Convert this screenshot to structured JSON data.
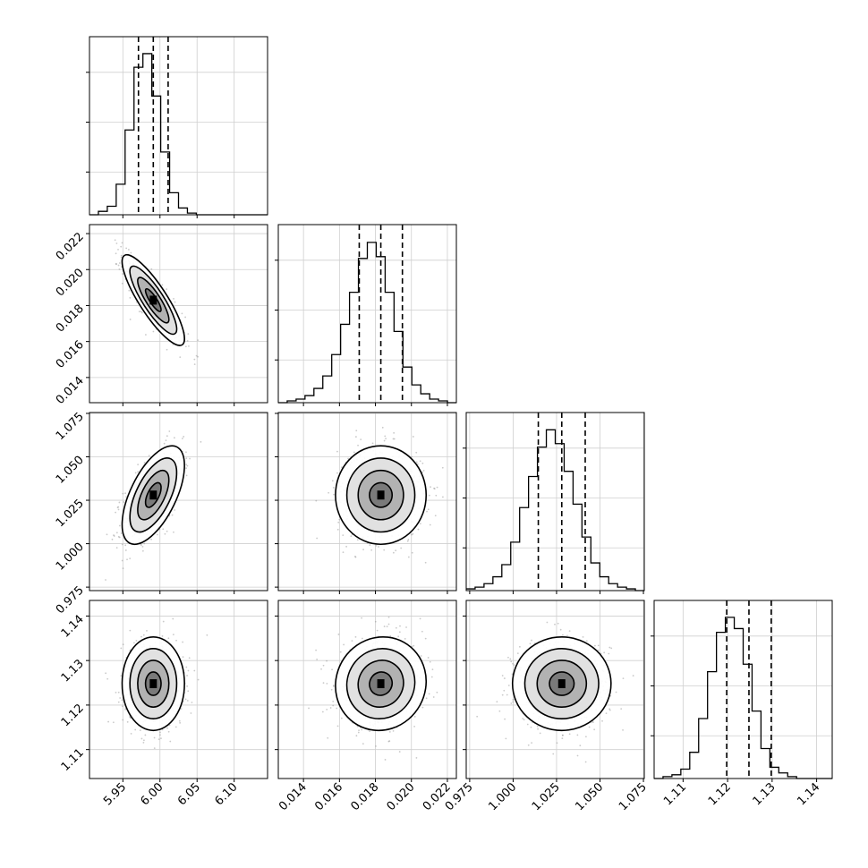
{
  "chart_data": {
    "type": "scatter",
    "title": "",
    "parameters": [
      {
        "key": "p0",
        "range": [
          5.905,
          6.145
        ],
        "quantiles": [
          5.971,
          5.991,
          6.011
        ],
        "ticks": [
          {
            "value": 5.95,
            "label": "5.95"
          },
          {
            "value": 6.0,
            "label": "6.00"
          },
          {
            "value": 6.05,
            "label": "6.05"
          },
          {
            "value": 6.1,
            "label": "6.10"
          }
        ]
      },
      {
        "key": "p1",
        "range": [
          0.0126,
          0.0225
        ],
        "quantiles": [
          0.0171,
          0.0183,
          0.0195
        ],
        "ticks": [
          {
            "value": 0.014,
            "label": "0.014"
          },
          {
            "value": 0.016,
            "label": "0.016"
          },
          {
            "value": 0.018,
            "label": "0.018"
          },
          {
            "value": 0.02,
            "label": "0.020"
          },
          {
            "value": 0.022,
            "label": "0.022"
          }
        ]
      },
      {
        "key": "p2",
        "range": [
          0.973,
          1.0755
        ],
        "quantiles": [
          1.0145,
          1.028,
          1.0415
        ],
        "ticks": [
          {
            "value": 0.975,
            "label": "0.975"
          },
          {
            "value": 1.0,
            "label": "1.000"
          },
          {
            "value": 1.025,
            "label": "1.025"
          },
          {
            "value": 1.05,
            "label": "1.050"
          },
          {
            "value": 1.075,
            "label": "1.075"
          }
        ]
      },
      {
        "key": "p3",
        "range": [
          1.1035,
          1.1435
        ],
        "quantiles": [
          1.1198,
          1.1248,
          1.1298
        ],
        "ticks": [
          {
            "value": 1.11,
            "label": "1.11"
          },
          {
            "value": 1.12,
            "label": "1.12"
          },
          {
            "value": 1.13,
            "label": "1.13"
          },
          {
            "value": 1.14,
            "label": "1.14"
          }
        ]
      }
    ],
    "histograms": [
      {
        "param": "p0",
        "bin_start": 5.905,
        "bin_width": 0.012,
        "counts": [
          0,
          2,
          5,
          18,
          50,
          87,
          95,
          70,
          37,
          13,
          4,
          1,
          0,
          0,
          0,
          0,
          0,
          0,
          0,
          0
        ],
        "ylim": [
          0,
          105
        ]
      },
      {
        "param": "p1",
        "bin_start": 0.0126,
        "bin_width": 0.000495,
        "counts": [
          0,
          1,
          2,
          4,
          8,
          15,
          27,
          44,
          62,
          81,
          90,
          82,
          62,
          40,
          20,
          10,
          5,
          2,
          1,
          0
        ],
        "ylim": [
          0,
          100
        ]
      },
      {
        "param": "p2",
        "bin_start": 0.973,
        "bin_width": 0.005125,
        "counts": [
          1,
          2,
          4,
          8,
          15,
          28,
          48,
          66,
          83,
          93,
          85,
          69,
          50,
          31,
          16,
          8,
          4,
          2,
          1,
          0
        ],
        "ylim": [
          0,
          103
        ]
      },
      {
        "param": "p3",
        "bin_start": 1.1035,
        "bin_width": 0.002,
        "counts": [
          0,
          1,
          2,
          5,
          14,
          32,
          57,
          78,
          86,
          80,
          61,
          36,
          16,
          6,
          3,
          1,
          0,
          0,
          0,
          0
        ],
        "ylim": [
          0,
          95
        ]
      }
    ],
    "pairs": [
      {
        "x": "p0",
        "y": "p1",
        "center": [
          5.991,
          0.0183
        ],
        "sd": [
          0.02,
          0.0012
        ],
        "corr": -0.85
      },
      {
        "x": "p0",
        "y": "p2",
        "center": [
          5.991,
          1.028
        ],
        "sd": [
          0.02,
          0.0135
        ],
        "corr": 0.6
      },
      {
        "x": "p1",
        "y": "p2",
        "center": [
          0.0183,
          1.028
        ],
        "sd": [
          0.0012,
          0.0135
        ],
        "corr": 0.0
      },
      {
        "x": "p0",
        "y": "p3",
        "center": [
          5.991,
          1.1248
        ],
        "sd": [
          0.02,
          0.005
        ],
        "corr": 0.0
      },
      {
        "x": "p1",
        "y": "p3",
        "center": [
          0.0183,
          1.1248
        ],
        "sd": [
          0.0012,
          0.005
        ],
        "corr": 0.05
      },
      {
        "x": "p2",
        "y": "p3",
        "center": [
          1.028,
          1.1248
        ],
        "sd": [
          0.0135,
          0.005
        ],
        "corr": 0.0
      }
    ],
    "contour_levels_sigma": [
      0.5,
      1.0,
      1.5,
      2.0
    ],
    "grid": true,
    "legend": "none",
    "xlabel": "",
    "ylabel": ""
  }
}
